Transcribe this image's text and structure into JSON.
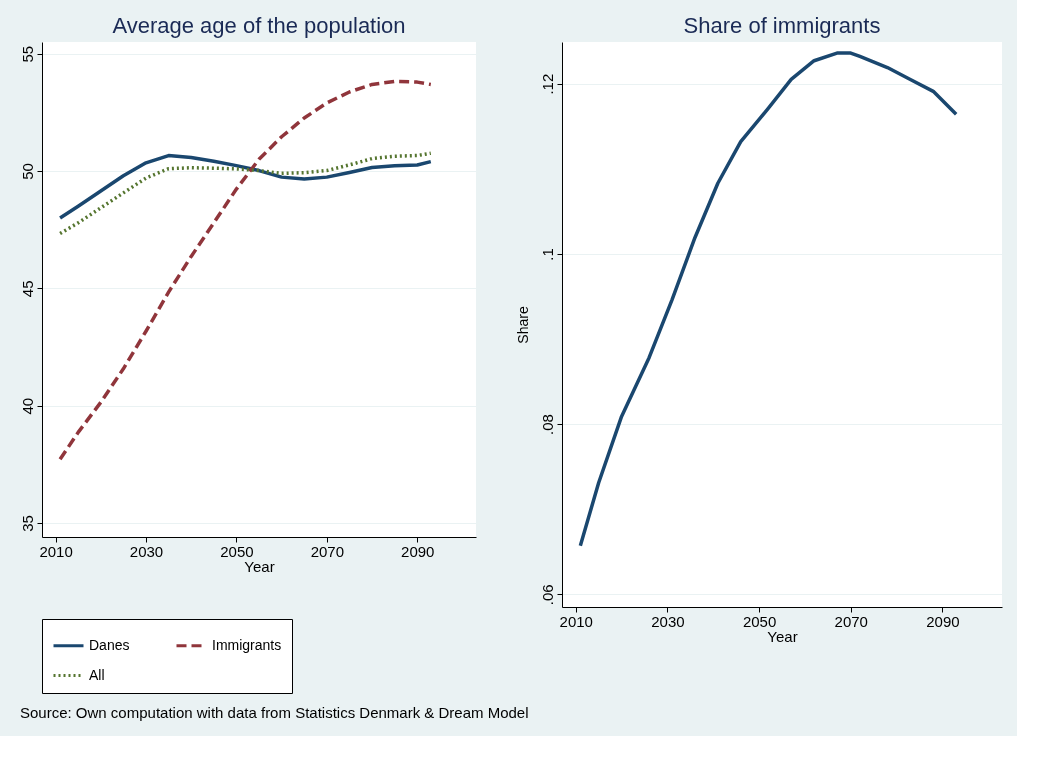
{
  "chart_data": [
    {
      "type": "line",
      "title": "Average age of the population",
      "xlabel": "Year",
      "xlim": [
        2007,
        2103
      ],
      "xticks": [
        2010,
        2030,
        2050,
        2070,
        2090
      ],
      "ylim": [
        34.4,
        55.5
      ],
      "yticks": [
        35,
        40,
        45,
        50,
        55
      ],
      "grid": "y",
      "legend": "bottom",
      "marker": "none",
      "x": [
        2011,
        2015,
        2020,
        2025,
        2030,
        2035,
        2040,
        2045,
        2050,
        2055,
        2060,
        2065,
        2070,
        2075,
        2080,
        2085,
        2090,
        2093
      ],
      "series": [
        {
          "name": "Danes",
          "color": "#1a476f",
          "line_style": "solid",
          "values": [
            48.0,
            48.5,
            49.15,
            49.8,
            50.35,
            50.66,
            50.58,
            50.42,
            50.23,
            50.02,
            49.74,
            49.66,
            49.74,
            49.94,
            50.15,
            50.22,
            50.26,
            50.4
          ]
        },
        {
          "name": "Immigrants",
          "color": "#90353b",
          "line_style": "dashed",
          "values": [
            37.71,
            38.86,
            40.14,
            41.57,
            43.17,
            44.84,
            46.36,
            47.79,
            49.23,
            50.5,
            51.46,
            52.26,
            52.9,
            53.37,
            53.69,
            53.82,
            53.79,
            53.69
          ]
        },
        {
          "name": "All",
          "color": "#55752f",
          "line_style": "dotted",
          "values": [
            47.34,
            47.79,
            48.43,
            49.07,
            49.7,
            50.1,
            50.14,
            50.12,
            50.09,
            50.02,
            49.9,
            49.93,
            50.02,
            50.26,
            50.53,
            50.63,
            50.66,
            50.76
          ]
        }
      ],
      "annotations": [
        "Source: Own computation with data from Statistics Denmark & Dream Model"
      ]
    },
    {
      "type": "line",
      "title": "Share of immigrants",
      "xlabel": "Year",
      "ylabel": "Share",
      "xlim": [
        2007,
        2103
      ],
      "xticks": [
        2010,
        2030,
        2050,
        2070,
        2090
      ],
      "ylim": [
        0.0585,
        0.1249
      ],
      "yticks": [
        {
          "value": 0.06,
          "label": ".06"
        },
        {
          "value": 0.08,
          "label": ".08"
        },
        {
          "value": 0.1,
          "label": ".1"
        },
        {
          "value": 0.12,
          "label": ".12"
        }
      ],
      "grid": "y",
      "legend": false,
      "marker": "none",
      "x": [
        2011,
        2015,
        2020,
        2026,
        2031,
        2036,
        2041,
        2046,
        2052,
        2057,
        2062,
        2067,
        2070,
        2072,
        2078,
        2083,
        2088,
        2093
      ],
      "series": [
        {
          "color": "#1a476f",
          "line_style": "solid",
          "values": [
            0.0657,
            0.0731,
            0.0809,
            0.0878,
            0.0946,
            0.1019,
            0.1083,
            0.1132,
            0.1171,
            0.1205,
            0.1227,
            0.1236,
            0.1236,
            0.1232,
            0.1219,
            0.1205,
            0.1191,
            0.1164
          ]
        }
      ]
    }
  ]
}
